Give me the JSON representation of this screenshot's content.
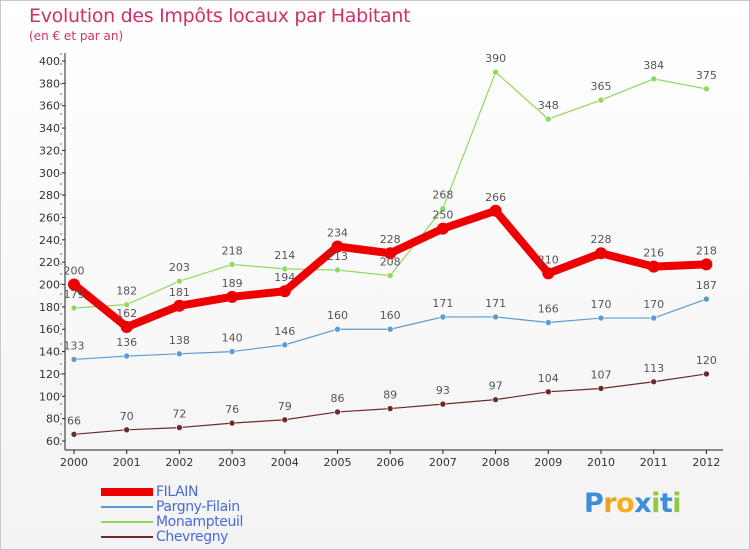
{
  "chart_data": {
    "type": "line",
    "title": "Evolution des Impôts locaux par Habitant",
    "subtitle": "(en € et par an)",
    "xlabel": "",
    "ylabel": "",
    "x": [
      "2000",
      "2001",
      "2002",
      "2003",
      "2004",
      "2005",
      "2006",
      "2007",
      "2008",
      "2009",
      "2010",
      "2011",
      "2012"
    ],
    "ylim": [
      60,
      400
    ],
    "yticks": [
      60,
      80,
      100,
      120,
      140,
      160,
      180,
      200,
      220,
      240,
      260,
      280,
      300,
      320,
      340,
      360,
      380,
      400
    ],
    "grid": false,
    "legend_position": "bottom-left",
    "series": [
      {
        "name": "FILAIN",
        "color": "#ee0000",
        "values": [
          200,
          162,
          181,
          189,
          194,
          234,
          228,
          250,
          266,
          210,
          228,
          216,
          218
        ]
      },
      {
        "name": "Pargny-Filain",
        "color": "#5a9bd3",
        "values": [
          133,
          136,
          138,
          140,
          146,
          160,
          160,
          171,
          171,
          166,
          170,
          170,
          187
        ]
      },
      {
        "name": "Monampteuil",
        "color": "#90d860",
        "values": [
          179,
          182,
          203,
          218,
          214,
          213,
          208,
          268,
          390,
          348,
          365,
          384,
          375
        ]
      },
      {
        "name": "Chevregny",
        "color": "#6b2a2a",
        "values": [
          66,
          70,
          72,
          76,
          79,
          86,
          89,
          93,
          97,
          104,
          107,
          113,
          120
        ]
      }
    ]
  },
  "logo": {
    "letters": [
      "P",
      "r",
      "o",
      "x",
      "i",
      "t",
      "i"
    ],
    "colors": [
      "#3a8fd8",
      "#f0a020",
      "#f5b020",
      "#3a8fd8",
      "#90c840",
      "#3a8fd8",
      "#90c840"
    ]
  }
}
